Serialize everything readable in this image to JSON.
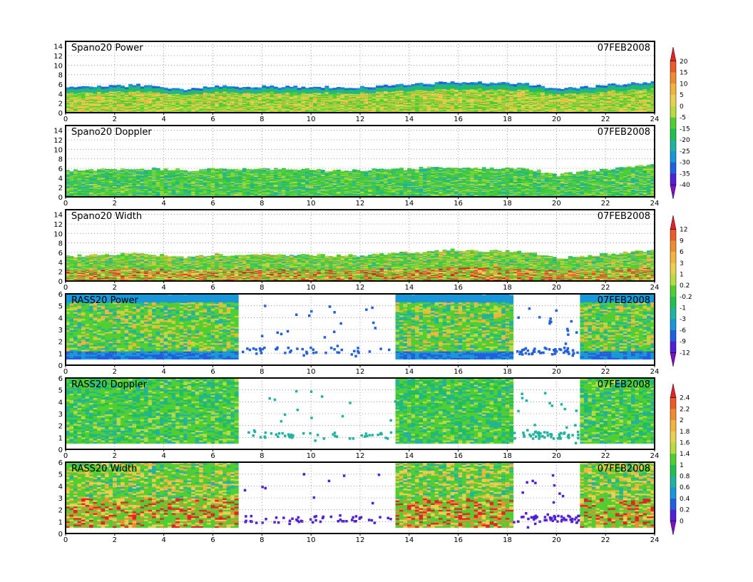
{
  "chart_data": [
    {
      "type": "heatmap",
      "title": "Spano20 Power",
      "date_label": "07FEB2008",
      "xlim": [
        0,
        24
      ],
      "ylim": [
        0,
        15
      ],
      "xticks": [
        0,
        2,
        4,
        6,
        8,
        10,
        12,
        14,
        16,
        18,
        20,
        22,
        24
      ],
      "yticks": [
        0,
        2,
        4,
        6,
        8,
        10,
        12,
        14
      ],
      "grid": true,
      "colorbar": "A",
      "coverage": [
        [
          0,
          24
        ]
      ],
      "top_height": [
        [
          0,
          5.2
        ],
        [
          3,
          5.8
        ],
        [
          5,
          5.0
        ],
        [
          6,
          5.6
        ],
        [
          12,
          5.4
        ],
        [
          16,
          6.5
        ],
        [
          19,
          6.0
        ],
        [
          20,
          4.8
        ],
        [
          22,
          5.8
        ],
        [
          24,
          6.5
        ]
      ]
    },
    {
      "type": "heatmap",
      "title": "Spano20 Doppler",
      "date_label": "07FEB2008",
      "xlim": [
        0,
        24
      ],
      "ylim": [
        0,
        15
      ],
      "xticks": [
        0,
        2,
        4,
        6,
        8,
        10,
        12,
        14,
        16,
        18,
        20,
        22,
        24
      ],
      "yticks": [
        0,
        2,
        4,
        6,
        8,
        10,
        12,
        14
      ],
      "grid": true,
      "colorbar": "A",
      "coverage": [
        [
          0,
          24
        ]
      ],
      "top_height": [
        [
          0,
          5.5
        ],
        [
          3,
          6.0
        ],
        [
          5,
          5.6
        ],
        [
          6,
          6.0
        ],
        [
          12,
          5.6
        ],
        [
          16,
          6.3
        ],
        [
          19,
          5.8
        ],
        [
          20,
          4.6
        ],
        [
          22,
          5.8
        ],
        [
          24,
          6.8
        ]
      ]
    },
    {
      "type": "heatmap",
      "title": "Spano20 Width",
      "date_label": "07FEB2008",
      "xlim": [
        0,
        24
      ],
      "ylim": [
        0,
        15
      ],
      "xticks": [
        0,
        2,
        4,
        6,
        8,
        10,
        12,
        14,
        16,
        18,
        20,
        22,
        24
      ],
      "yticks": [
        0,
        2,
        4,
        6,
        8,
        10,
        12,
        14
      ],
      "grid": true,
      "colorbar": "B",
      "coverage": [
        [
          0,
          24
        ]
      ],
      "top_height": [
        [
          0,
          5.2
        ],
        [
          3,
          5.8
        ],
        [
          5,
          5.0
        ],
        [
          6,
          5.6
        ],
        [
          12,
          5.4
        ],
        [
          16,
          6.6
        ],
        [
          19,
          6.0
        ],
        [
          20,
          4.8
        ],
        [
          22,
          5.6
        ],
        [
          24,
          6.6
        ]
      ]
    },
    {
      "type": "heatmap",
      "title": "RASS20 Power",
      "date_label": "07FEB2008",
      "xlim": [
        0,
        24
      ],
      "ylim": [
        0,
        6
      ],
      "xticks": [
        0,
        2,
        4,
        6,
        8,
        10,
        12,
        14,
        16,
        18,
        20,
        22,
        24
      ],
      "yticks": [
        0,
        1,
        2,
        3,
        4,
        5,
        6
      ],
      "grid": true,
      "colorbar": "B",
      "coverage": [
        [
          0,
          7.1
        ],
        [
          13.4,
          18.2
        ],
        [
          20.9,
          24
        ]
      ],
      "bottom_height": 0.5,
      "top_height": [
        [
          0,
          6
        ],
        [
          24,
          6
        ]
      ]
    },
    {
      "type": "heatmap",
      "title": "RASS20 Doppler",
      "date_label": "07FEB2008",
      "xlim": [
        0,
        24
      ],
      "ylim": [
        0,
        6
      ],
      "xticks": [
        0,
        2,
        4,
        6,
        8,
        10,
        12,
        14,
        16,
        18,
        20,
        22,
        24
      ],
      "yticks": [
        0,
        1,
        2,
        3,
        4,
        5,
        6
      ],
      "grid": true,
      "colorbar": "C",
      "coverage": [
        [
          0,
          7.1
        ],
        [
          13.4,
          18.2
        ],
        [
          20.9,
          24
        ]
      ],
      "bottom_height": 0.5,
      "top_height": [
        [
          0,
          6
        ],
        [
          24,
          6
        ]
      ]
    },
    {
      "type": "heatmap",
      "title": "RASS20 Width",
      "date_label": "07FEB2008",
      "xlim": [
        0,
        24
      ],
      "ylim": [
        0,
        6
      ],
      "xticks": [
        0,
        2,
        4,
        6,
        8,
        10,
        12,
        14,
        16,
        18,
        20,
        22,
        24
      ],
      "yticks": [
        0,
        1,
        2,
        3,
        4,
        5,
        6
      ],
      "grid": true,
      "colorbar": "C",
      "coverage": [
        [
          0,
          7.1
        ],
        [
          13.4,
          18.2
        ],
        [
          20.9,
          24
        ]
      ],
      "bottom_height": 0.5,
      "top_height": [
        [
          0,
          6
        ],
        [
          24,
          6
        ]
      ]
    }
  ],
  "colorbars": {
    "A": {
      "labels": [
        "20",
        "15",
        "10",
        "5",
        "0",
        "-5",
        "-15",
        "-20",
        "-25",
        "-30",
        "-35",
        "-40"
      ],
      "colors": [
        "#e8202a",
        "#ec5a28",
        "#f08c30",
        "#f3b43c",
        "#e8d050",
        "#b8dc40",
        "#50d030",
        "#20c050",
        "#20b4a0",
        "#1898d8",
        "#2060e0",
        "#5020d8",
        "#8010c8"
      ]
    },
    "B": {
      "labels": [
        "12",
        "9",
        "6",
        "3",
        "1",
        "0.2",
        "-0.2",
        "-1",
        "-3",
        "-6",
        "-9",
        "-12"
      ],
      "colors": [
        "#e8202a",
        "#ec5a28",
        "#f08c30",
        "#f3b43c",
        "#e8d050",
        "#b8dc40",
        "#50d030",
        "#20c050",
        "#20b4a0",
        "#1898d8",
        "#2060e0",
        "#5020d8",
        "#8010c8"
      ]
    },
    "C": {
      "labels": [
        "2.4",
        "2.2",
        "2",
        "1.8",
        "1.6",
        "1.4",
        "1",
        "0.8",
        "0.6",
        "0.4",
        "0.2",
        "0"
      ],
      "colors": [
        "#e8202a",
        "#ec5a28",
        "#f08c30",
        "#f3b43c",
        "#e8d050",
        "#b8dc40",
        "#50d030",
        "#20c050",
        "#20b4a0",
        "#1898d8",
        "#2060e0",
        "#5020d8",
        "#8010c8"
      ]
    }
  },
  "palette": {
    "frame": "#000000",
    "grid": "#888888",
    "text": "#000000"
  }
}
